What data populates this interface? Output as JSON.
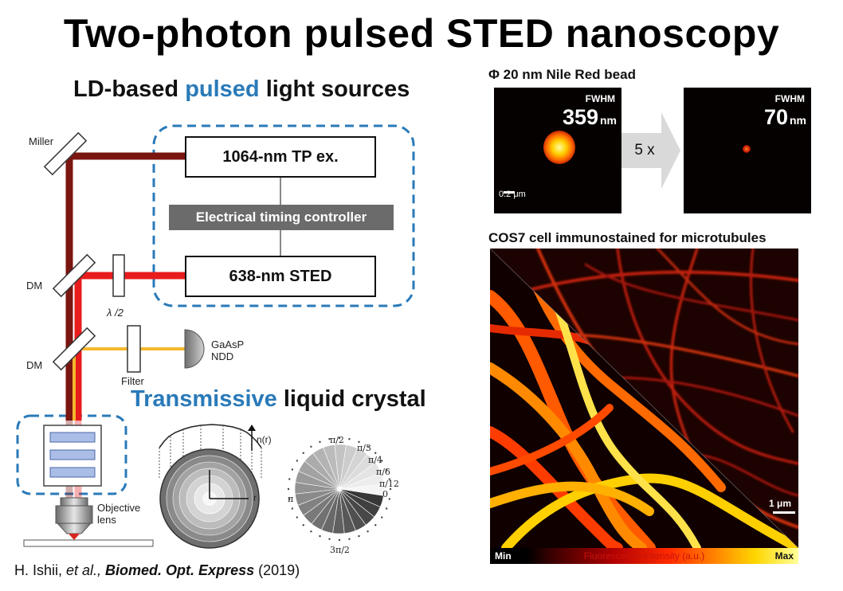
{
  "title": "Two-photon pulsed STED nanoscopy",
  "ld_heading": {
    "prefix": "LD-based ",
    "highlight": "pulsed",
    "suffix": " light sources"
  },
  "boxes": {
    "tp_ex": "1064-nm TP ex.",
    "controller": "Electrical timing controller",
    "sted": "638-nm STED"
  },
  "optics": {
    "miller": "Miller",
    "dm1": "DM",
    "dm2": "DM",
    "half_wave": "λ /2",
    "filter": "Filter",
    "detector_line1": "GaAsP",
    "detector_line2": "NDD",
    "objective_line1": "Objective",
    "objective_line2": "lens"
  },
  "tlc_heading": {
    "highlight": "Transmissive",
    "suffix": " liquid crystal"
  },
  "lens_profile": {
    "n_label": "n(r)",
    "r_label": "r"
  },
  "phase_labels": [
    "π/2",
    "π/3",
    "π/4",
    "π/6",
    "π/12",
    "0",
    "π",
    "3π/2"
  ],
  "bead": {
    "heading": "Φ 20 nm Nile Red bead",
    "fwhm_label": "FWHM",
    "left_value": "359",
    "right_value": "70",
    "unit": "nm",
    "scalebar": "0.2 μm",
    "improvement": "5 x"
  },
  "cos7": {
    "heading": "COS7 cell immunostained for microtubules",
    "scalebar": "1 μm",
    "colorbar_min": "Min",
    "colorbar_label": "Fluorescence Intensity (a.u.)",
    "colorbar_max": "Max"
  },
  "citation": {
    "authors": "H. Ishii, ",
    "etal": "et al.,",
    "journal": " Biomed. Opt. Express",
    "year": " (2019)"
  },
  "colors": {
    "accent_blue": "#2a7ab8",
    "beam_tp": "#7a1510",
    "beam_sted": "#e81c1c",
    "beam_fluor": "#f5b82e",
    "controller_gray": "#6b6b6b"
  }
}
